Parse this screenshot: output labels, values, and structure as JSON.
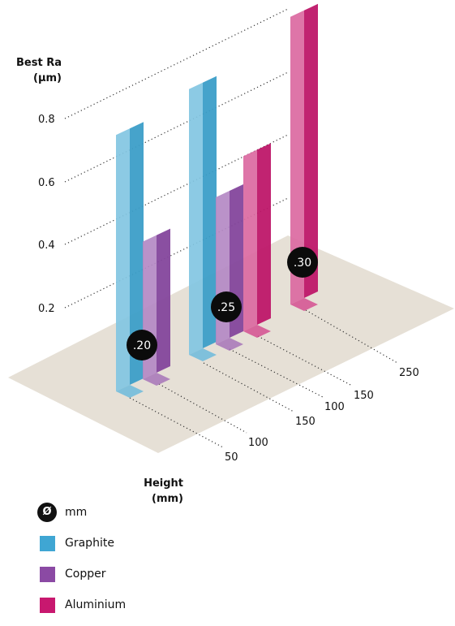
{
  "chart_data": {
    "type": "bar",
    "ylabel": [
      "Best Ra",
      "(µm)"
    ],
    "xlabel": [
      "Height",
      "(mm)"
    ],
    "y_ticks": [
      "0.2",
      "0.4",
      "0.6",
      "0.8"
    ],
    "ylim": [
      0,
      0.9
    ],
    "categories": [
      "50",
      "100",
      "150",
      "100",
      "150",
      "250"
    ],
    "diameter_groups": [
      {
        "diameter": ".20",
        "bars": [
          {
            "height_label": "50",
            "material": "Graphite",
            "ra": 0.82
          },
          {
            "height_label": "100",
            "material": "Copper",
            "ra": 0.44
          }
        ]
      },
      {
        "diameter": ".25",
        "bars": [
          {
            "height_label": "150",
            "material": "Graphite",
            "ra": 0.85
          },
          {
            "height_label": "100",
            "material": "Copper",
            "ra": 0.47
          },
          {
            "height_label": "150",
            "material": "Aluminium",
            "ra": 0.56
          }
        ]
      },
      {
        "diameter": ".30",
        "bars": [
          {
            "height_label": "250",
            "material": "Aluminium",
            "ra": 0.92
          }
        ]
      }
    ],
    "colors": {
      "Graphite": "#3fa6d3",
      "Copper": "#8b4aa4",
      "Aluminium": "#c8186f"
    }
  },
  "legend": {
    "diameter_symbol": "Ø",
    "diameter_unit": "mm",
    "items": [
      {
        "label": "Graphite",
        "color": "#3fa6d3"
      },
      {
        "label": "Copper",
        "color": "#8b4aa4"
      },
      {
        "label": "Aluminium",
        "color": "#c8186f"
      }
    ]
  }
}
